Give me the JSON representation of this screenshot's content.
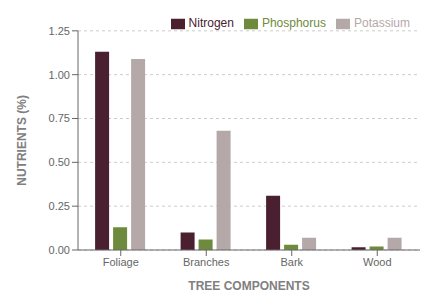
{
  "chart_data": {
    "type": "bar",
    "xlabel": "TREE COMPONENTS",
    "ylabel": "NUTRIENTS (%)",
    "categories": [
      "Foliage",
      "Branches",
      "Bark",
      "Wood"
    ],
    "series": [
      {
        "name": "Nitrogen",
        "color": "#4a2030",
        "values": [
          1.13,
          0.1,
          0.31,
          0.015
        ]
      },
      {
        "name": "Phosphorus",
        "color": "#6e8b3d",
        "values": [
          0.13,
          0.06,
          0.03,
          0.02
        ]
      },
      {
        "name": "Potassium",
        "color": "#b5a8a8",
        "values": [
          1.09,
          0.68,
          0.07,
          0.07
        ]
      }
    ],
    "ylim": [
      0,
      1.25
    ],
    "yticks": [
      {
        "value": 0,
        "label": "0.00"
      },
      {
        "value": 0.25,
        "label": "0.25"
      },
      {
        "value": 0.5,
        "label": "0.50"
      },
      {
        "value": 0.75,
        "label": "0.75"
      },
      {
        "value": 1,
        "label": "1.00"
      },
      {
        "value": 1.25,
        "label": "1.25"
      }
    ],
    "grid": true,
    "legend": "upper right"
  }
}
